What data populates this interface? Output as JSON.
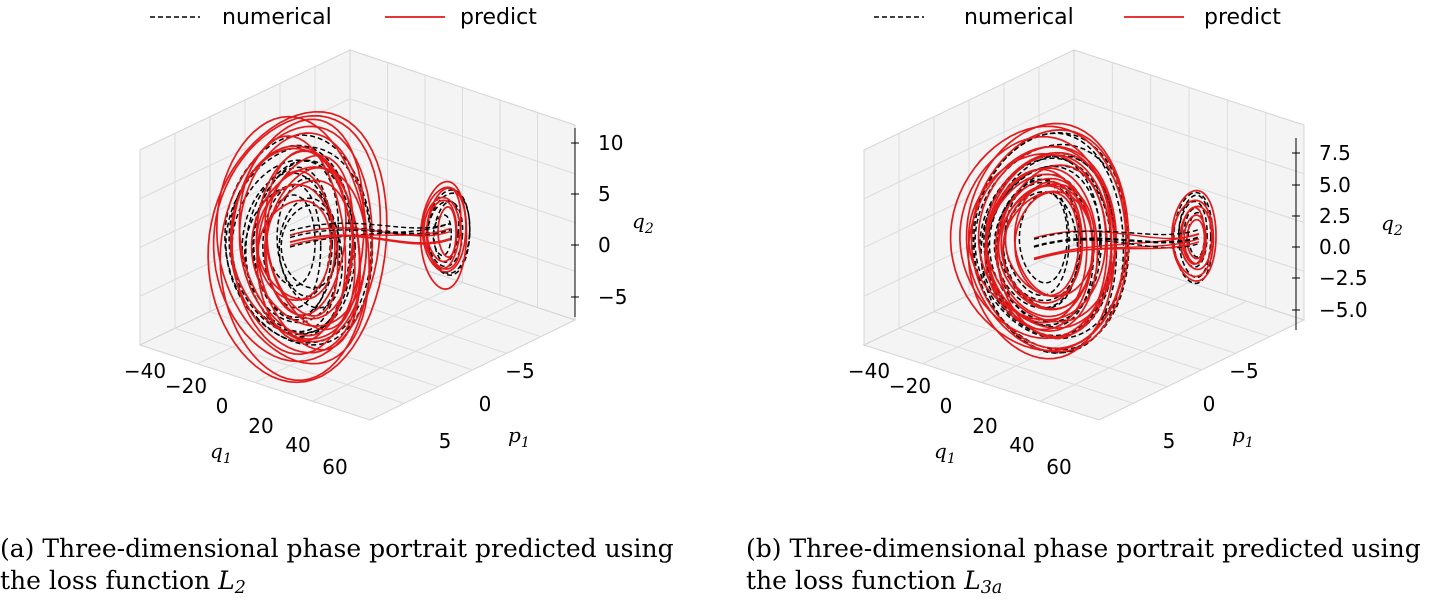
{
  "chart_data": [
    {
      "id": "a",
      "type": "line3d",
      "legend": {
        "placement": "top",
        "entries": [
          {
            "label": "numerical",
            "style": "dashed",
            "color": "#000000"
          },
          {
            "label": "predict",
            "style": "solid",
            "color": "#e31a1c"
          }
        ]
      },
      "axes": {
        "x": {
          "label": "q",
          "label_sub": "1",
          "ticks": [
            "−40",
            "−20",
            "0",
            "20",
            "40",
            "60"
          ]
        },
        "y": {
          "label": "p",
          "label_sub": "1",
          "ticks": [
            "−5",
            "0",
            "5"
          ]
        },
        "z": {
          "label": "q",
          "label_sub": "2",
          "ticks": [
            "−5",
            "0",
            "5",
            "10"
          ]
        }
      },
      "grid": true,
      "caption": {
        "text": "(a) Three-dimensional phase portrait predicted using the loss function ",
        "math": "L",
        "math_sub": "2"
      }
    },
    {
      "id": "b",
      "type": "line3d",
      "legend": {
        "placement": "top",
        "entries": [
          {
            "label": "numerical",
            "style": "dashed",
            "color": "#000000"
          },
          {
            "label": "predict",
            "style": "solid",
            "color": "#e31a1c"
          }
        ]
      },
      "axes": {
        "x": {
          "label": "q",
          "label_sub": "1",
          "ticks": [
            "−40",
            "−20",
            "0",
            "20",
            "40",
            "60"
          ]
        },
        "y": {
          "label": "p",
          "label_sub": "1",
          "ticks": [
            "−5",
            "0",
            "5"
          ]
        },
        "z": {
          "label": "q",
          "label_sub": "2",
          "ticks": [
            "−5.0",
            "−2.5",
            "0.0",
            "2.5",
            "5.0",
            "7.5"
          ]
        }
      },
      "grid": true,
      "caption": {
        "text": "(b) Three-dimensional phase portrait predicted using the loss function ",
        "math": "L",
        "math_sub": "3a"
      }
    }
  ]
}
